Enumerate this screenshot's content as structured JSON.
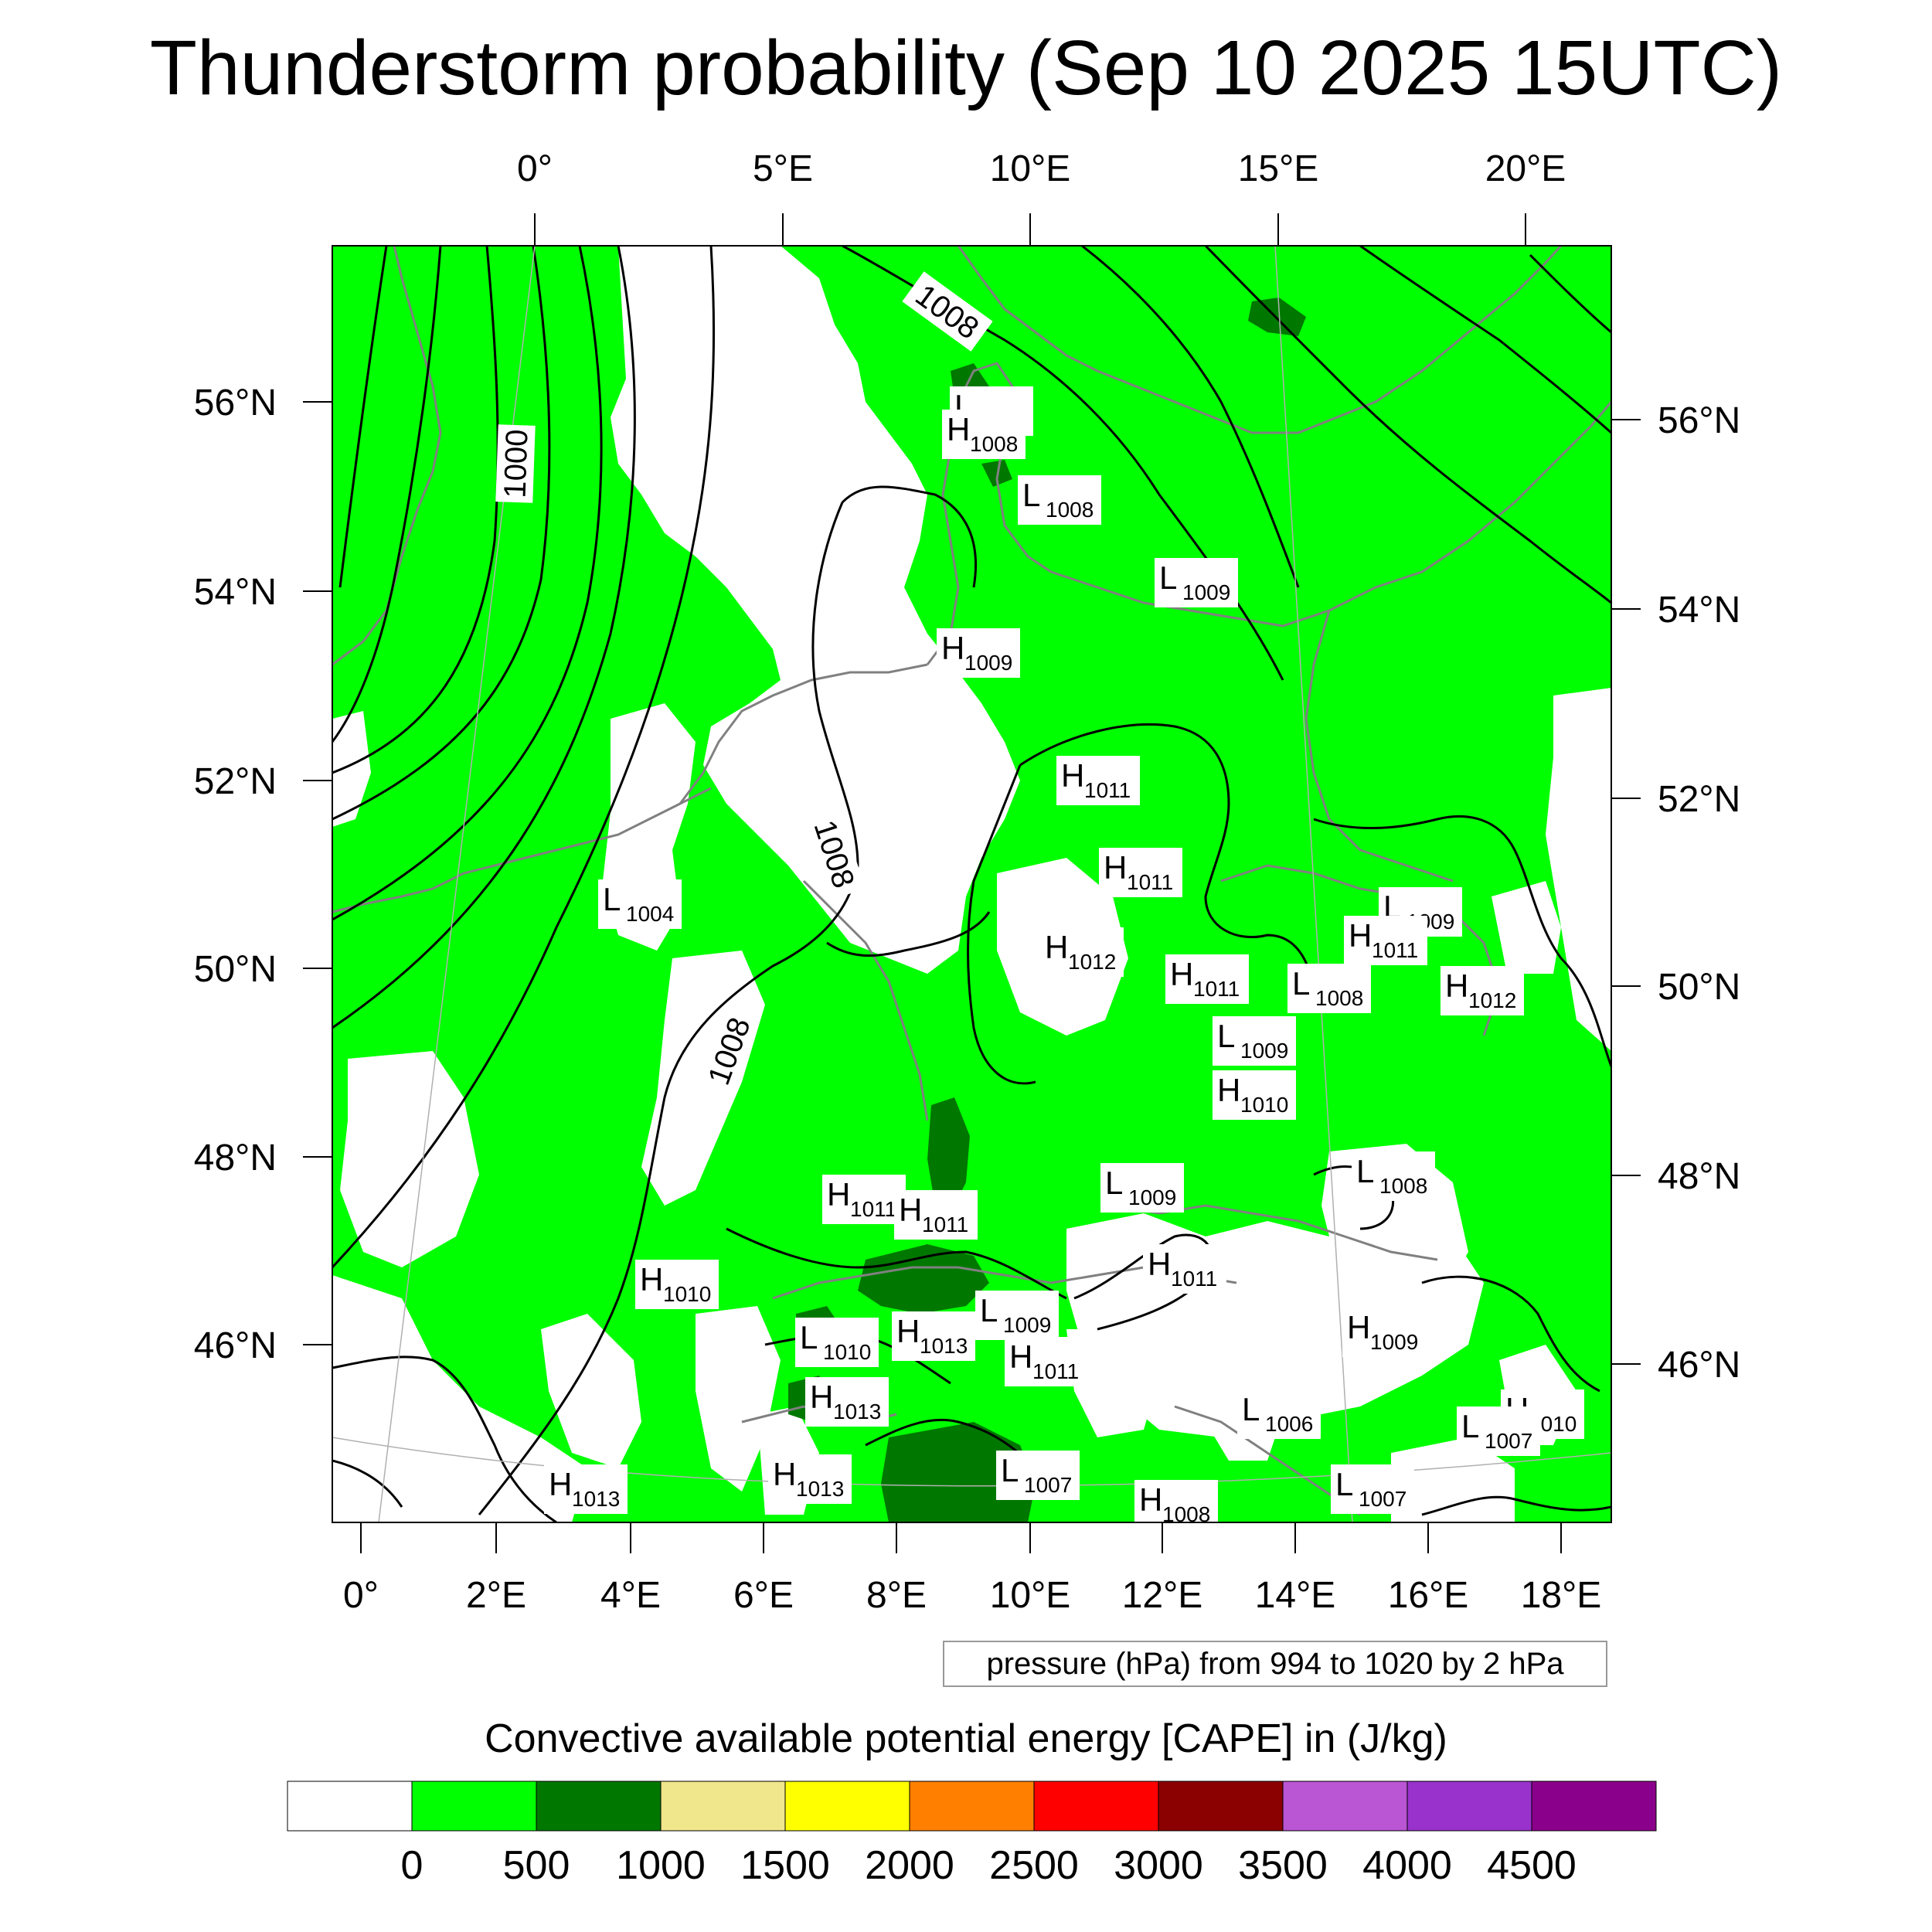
{
  "title": "Thunderstorm probability (Sep 10 2025 15UTC)",
  "contour_note": "pressure (hPa) from 994 to 1020 by 2 hPa",
  "colorbar": {
    "title": "Convective available potential energy [CAPE] in (J/kg)",
    "colors": [
      "#ffffff",
      "#00ff00",
      "#007800",
      "#f0e68c",
      "#ffff00",
      "#ff8000",
      "#ff0000",
      "#8b0000",
      "#ba55d3",
      "#9932cc",
      "#8b008b"
    ],
    "tick_labels": [
      "0",
      "500",
      "1000",
      "1500",
      "2000",
      "2500",
      "3000",
      "3500",
      "4000",
      "4500"
    ]
  },
  "axes": {
    "top_lon_labels": [
      "0°",
      "5°E",
      "10°E",
      "15°E",
      "20°E"
    ],
    "bottom_lon_labels": [
      "0°",
      "2°E",
      "4°E",
      "6°E",
      "8°E",
      "10°E",
      "12°E",
      "14°E",
      "16°E",
      "18°E"
    ],
    "left_lat_labels": [
      "56°N",
      "54°N",
      "52°N",
      "50°N",
      "48°N",
      "46°N"
    ],
    "right_lat_labels": [
      "56°N",
      "54°N",
      "52°N",
      "50°N",
      "48°N",
      "46°N"
    ]
  },
  "isobar_labels": [
    "1000",
    "1008",
    "1008",
    "1008"
  ],
  "pressure_centers": [
    {
      "type": "L",
      "value": "1007"
    },
    {
      "type": "H",
      "value": "1008"
    },
    {
      "type": "L",
      "value": "1008"
    },
    {
      "type": "L",
      "value": "1009"
    },
    {
      "type": "H",
      "value": "1009"
    },
    {
      "type": "H",
      "value": "1011"
    },
    {
      "type": "H",
      "value": "1011"
    },
    {
      "type": "L",
      "value": "1004"
    },
    {
      "type": "H",
      "value": "1012"
    },
    {
      "type": "H",
      "value": "1011"
    },
    {
      "type": "L",
      "value": "1008"
    },
    {
      "type": "L",
      "value": "1009"
    },
    {
      "type": "H",
      "value": "1011"
    },
    {
      "type": "H",
      "value": "1012"
    },
    {
      "type": "L",
      "value": "1009"
    },
    {
      "type": "H",
      "value": "1010"
    },
    {
      "type": "H",
      "value": "1011"
    },
    {
      "type": "H",
      "value": "1011"
    },
    {
      "type": "L",
      "value": "1009"
    },
    {
      "type": "L",
      "value": "1008"
    },
    {
      "type": "H",
      "value": "1011"
    },
    {
      "type": "H",
      "value": "1010"
    },
    {
      "type": "L",
      "value": "1009"
    },
    {
      "type": "L",
      "value": "1010"
    },
    {
      "type": "H",
      "value": "1013"
    },
    {
      "type": "H",
      "value": "1011"
    },
    {
      "type": "H",
      "value": "1009"
    },
    {
      "type": "H",
      "value": "1013"
    },
    {
      "type": "L",
      "value": "1006"
    },
    {
      "type": "H",
      "value": "1010"
    },
    {
      "type": "L",
      "value": "1007"
    },
    {
      "type": "H",
      "value": "1013"
    },
    {
      "type": "L",
      "value": "1007"
    },
    {
      "type": "H",
      "value": "1008"
    },
    {
      "type": "L",
      "value": "1007"
    },
    {
      "type": "H",
      "value": "1013"
    }
  ],
  "palette": {
    "green": "#00ff00",
    "dark_green": "#007800",
    "coast": "#808080",
    "isobar": "#000000"
  }
}
